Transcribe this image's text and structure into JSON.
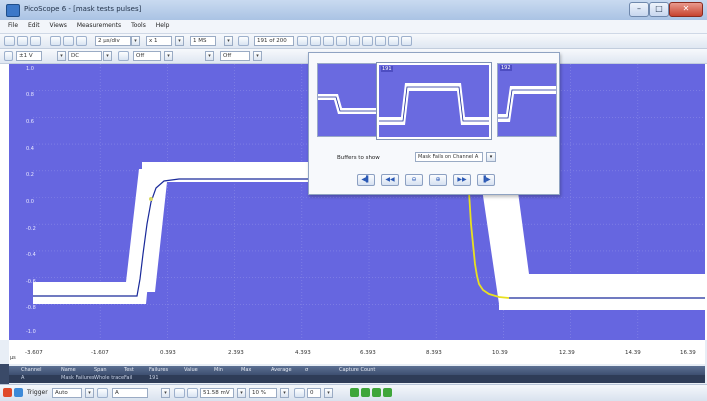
{
  "window": {
    "title": "PicoScope 6 - [mask tests pulses]",
    "minimize": "–",
    "maximize": "□",
    "close": "✕"
  },
  "menu": [
    "File",
    "Edit",
    "Views",
    "Measurements",
    "Tools",
    "Help"
  ],
  "toolbar": {
    "timebase": "2 µs/div",
    "zoom": "x 1",
    "samples": "1 MS",
    "buffer_position": "191 of 200"
  },
  "channel": {
    "label": "A",
    "range": "±1 V",
    "coupling": "DC",
    "b_state": "Off",
    "c_state": "Off"
  },
  "plot": {
    "y_labels": [
      "1.0",
      "0.8",
      "0.6",
      "0.4",
      "0.2",
      "0.0",
      "-0.2",
      "-0.4",
      "-0.6",
      "-0.8",
      "-1.0"
    ],
    "x_labels": [
      "-3.607",
      "-1.607",
      "0.393",
      "2.393",
      "4.393",
      "6.393",
      "8.393",
      "10.39",
      "12.39",
      "14.39",
      "16.39"
    ],
    "x_unit": "µs",
    "colors": {
      "background": "#6666e0",
      "mask": "#ffffff",
      "trace_pass": "#1a2a9a",
      "trace_fail": "#e8e020"
    }
  },
  "buffer_overview": {
    "thumbnails": [
      {
        "num": ""
      },
      {
        "num": "191"
      },
      {
        "num": "192"
      }
    ],
    "buffers_label": "Buffers to show",
    "filter_value": "Mask Fails on Channel A",
    "nav": [
      "first",
      "previous",
      "zoom-out",
      "zoom-in",
      "next",
      "last"
    ]
  },
  "measurements": {
    "headers": [
      "Channel",
      "Name",
      "Span",
      "Test",
      "Failures",
      "Value",
      "Min",
      "Max",
      "Average",
      "σ",
      "Capture Count"
    ],
    "row": [
      "A",
      "Mask Failures",
      "Whole trace",
      "Fail",
      "191",
      "",
      "",
      "",
      "",
      "",
      ""
    ]
  },
  "status": {
    "trigger_label": "Trigger",
    "trigger_mode": "Auto",
    "channel": "A",
    "level": "51.58 mV",
    "pre_trigger": "10 %",
    "delay": "0"
  }
}
